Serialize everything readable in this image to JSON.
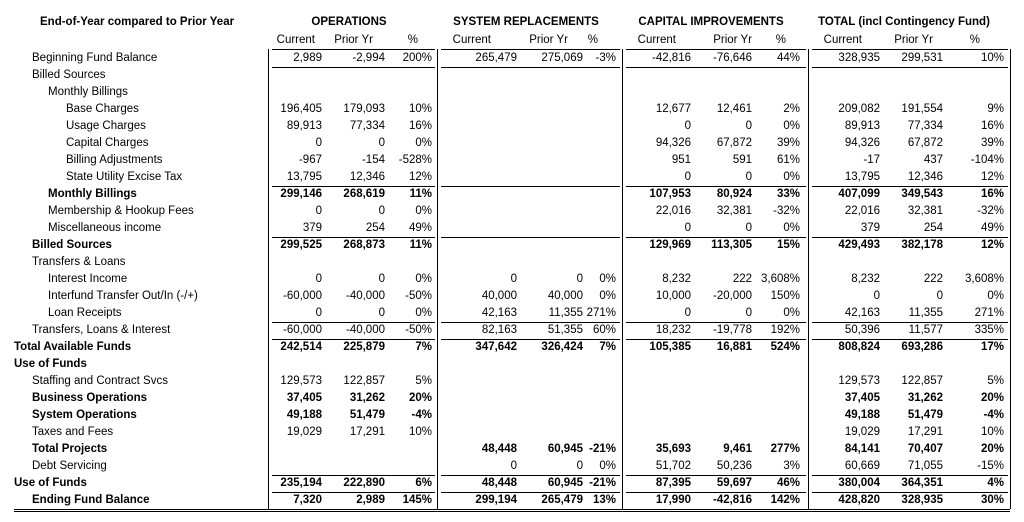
{
  "header": {
    "title": "End-of-Year compared to Prior Year",
    "groups": [
      {
        "title": "OPERATIONS",
        "columns": [
          "Current",
          "Prior Yr",
          "%"
        ]
      },
      {
        "title": "SYSTEM REPLACEMENTS",
        "columns": [
          "Current",
          "Prior Yr",
          "%"
        ]
      },
      {
        "title": "CAPITAL IMPROVEMENTS",
        "columns": [
          "Current",
          "Prior Yr",
          "%"
        ]
      },
      {
        "title": "TOTAL (incl Contingency Fund)",
        "columns": [
          "Current",
          "Prior Yr",
          "%"
        ]
      }
    ]
  },
  "table": {
    "rows": [
      {
        "label": "Beginning Fund Balance",
        "cells": [
          "2,989",
          "-2,994",
          "200%",
          "265,479",
          "275,069",
          "-3%",
          "-42,816",
          "-76,646",
          "44%",
          "328,935",
          "299,531",
          "10%"
        ]
      },
      {
        "label": "Billed Sources",
        "cells": [
          null,
          null,
          null,
          null,
          null,
          null,
          null,
          null,
          null,
          null,
          null,
          null
        ]
      },
      {
        "label": "Monthly Billings",
        "cells": [
          null,
          null,
          null,
          null,
          null,
          null,
          null,
          null,
          null,
          null,
          null,
          null
        ]
      },
      {
        "label": "Base Charges",
        "cells": [
          "196,405",
          "179,093",
          "10%",
          null,
          null,
          null,
          "12,677",
          "12,461",
          "2%",
          "209,082",
          "191,554",
          "9%"
        ]
      },
      {
        "label": "Usage Charges",
        "cells": [
          "89,913",
          "77,334",
          "16%",
          null,
          null,
          null,
          "0",
          "0",
          "0%",
          "89,913",
          "77,334",
          "16%"
        ]
      },
      {
        "label": "Capital Charges",
        "cells": [
          "0",
          "0",
          "0%",
          null,
          null,
          null,
          "94,326",
          "67,872",
          "39%",
          "94,326",
          "67,872",
          "39%"
        ]
      },
      {
        "label": "Billing Adjustments",
        "cells": [
          "-967",
          "-154",
          "-528%",
          null,
          null,
          null,
          "951",
          "591",
          "61%",
          "-17",
          "437",
          "-104%"
        ]
      },
      {
        "label": "State Utility Excise Tax",
        "cells": [
          "13,795",
          "12,346",
          "12%",
          null,
          null,
          null,
          "0",
          "0",
          "0%",
          "13,795",
          "12,346",
          "12%"
        ]
      },
      {
        "label": "Monthly Billings",
        "cells": [
          "299,146",
          "268,619",
          "11%",
          null,
          null,
          null,
          "107,953",
          "80,924",
          "33%",
          "407,099",
          "349,543",
          "16%"
        ]
      },
      {
        "label": "Membership & Hookup Fees",
        "cells": [
          "0",
          "0",
          "0%",
          null,
          null,
          null,
          "22,016",
          "32,381",
          "-32%",
          "22,016",
          "32,381",
          "-32%"
        ]
      },
      {
        "label": "Miscellaneous income",
        "cells": [
          "379",
          "254",
          "49%",
          null,
          null,
          null,
          "0",
          "0",
          "0%",
          "379",
          "254",
          "49%"
        ]
      },
      {
        "label": "Billed Sources",
        "cells": [
          "299,525",
          "268,873",
          "11%",
          null,
          null,
          null,
          "129,969",
          "113,305",
          "15%",
          "429,493",
          "382,178",
          "12%"
        ]
      },
      {
        "label": "Transfers & Loans",
        "cells": [
          null,
          null,
          null,
          null,
          null,
          null,
          null,
          null,
          null,
          null,
          null,
          null
        ]
      },
      {
        "label": "Interest Income",
        "cells": [
          "0",
          "0",
          "0%",
          "0",
          "0",
          "0%",
          "8,232",
          "222",
          "3,608%",
          "8,232",
          "222",
          "3,608%"
        ]
      },
      {
        "label": "Interfund Transfer Out/In (-/+)",
        "cells": [
          "-60,000",
          "-40,000",
          "-50%",
          "40,000",
          "40,000",
          "0%",
          "10,000",
          "-20,000",
          "150%",
          "0",
          "0",
          "0%"
        ]
      },
      {
        "label": "Loan Receipts",
        "cells": [
          "0",
          "0",
          "0%",
          "42,163",
          "11,355",
          "271%",
          "0",
          "0",
          "0%",
          "42,163",
          "11,355",
          "271%"
        ]
      },
      {
        "label": "Transfers, Loans & Interest",
        "cells": [
          "-60,000",
          "-40,000",
          "-50%",
          "82,163",
          "51,355",
          "60%",
          "18,232",
          "-19,778",
          "192%",
          "50,396",
          "11,577",
          "335%"
        ]
      },
      {
        "label": "Total Available Funds",
        "cells": [
          "242,514",
          "225,879",
          "7%",
          "347,642",
          "326,424",
          "7%",
          "105,385",
          "16,881",
          "524%",
          "808,824",
          "693,286",
          "17%"
        ]
      },
      {
        "label": "Use of Funds",
        "cells": [
          null,
          null,
          null,
          null,
          null,
          null,
          null,
          null,
          null,
          null,
          null,
          null
        ]
      },
      {
        "label": "Staffing and Contract Svcs",
        "cells": [
          "129,573",
          "122,857",
          "5%",
          null,
          null,
          null,
          null,
          null,
          null,
          "129,573",
          "122,857",
          "5%"
        ]
      },
      {
        "label": "Business Operations",
        "cells": [
          "37,405",
          "31,262",
          "20%",
          null,
          null,
          null,
          null,
          null,
          null,
          "37,405",
          "31,262",
          "20%"
        ]
      },
      {
        "label": "System Operations",
        "cells": [
          "49,188",
          "51,479",
          "-4%",
          null,
          null,
          null,
          null,
          null,
          null,
          "49,188",
          "51,479",
          "-4%"
        ]
      },
      {
        "label": "Taxes and Fees",
        "cells": [
          "19,029",
          "17,291",
          "10%",
          null,
          null,
          null,
          null,
          null,
          null,
          "19,029",
          "17,291",
          "10%"
        ]
      },
      {
        "label": "Total Projects",
        "cells": [
          null,
          null,
          null,
          "48,448",
          "60,945",
          "-21%",
          "35,693",
          "9,461",
          "277%",
          "84,141",
          "70,407",
          "20%"
        ]
      },
      {
        "label": "Debt Servicing",
        "cells": [
          null,
          null,
          null,
          "0",
          "0",
          "0%",
          "51,702",
          "50,236",
          "3%",
          "60,669",
          "71,055",
          "-15%"
        ]
      },
      {
        "label": "Use of Funds",
        "cells": [
          "235,194",
          "222,890",
          "6%",
          "48,448",
          "60,945",
          "-21%",
          "87,395",
          "59,697",
          "46%",
          "380,004",
          "364,351",
          "4%"
        ]
      },
      {
        "label": "Ending Fund Balance",
        "cells": [
          "7,320",
          "2,989",
          "145%",
          "299,194",
          "265,479",
          "13%",
          "17,990",
          "-42,816",
          "142%",
          "428,820",
          "328,935",
          "30%"
        ]
      }
    ]
  }
}
